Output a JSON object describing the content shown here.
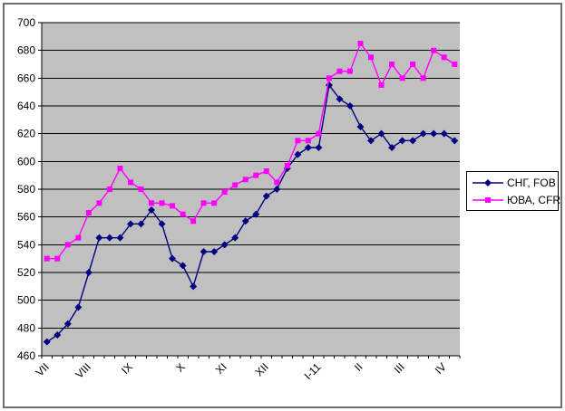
{
  "chart_data": {
    "type": "line",
    "title": "",
    "plot_bg": "#C0C0C0",
    "grid": true,
    "grid_color": "#000000",
    "axis_color": "#000000",
    "ylim": [
      460,
      700
    ],
    "ytick_step": 20,
    "yticks": [
      460,
      480,
      500,
      520,
      540,
      560,
      580,
      600,
      620,
      640,
      660,
      680,
      700
    ],
    "x_tick_count": 41,
    "x_labels": [
      {
        "text": "VII",
        "i": 0
      },
      {
        "text": "VIII",
        "i": 4
      },
      {
        "text": "IX",
        "i": 8
      },
      {
        "text": "X",
        "i": 13
      },
      {
        "text": "XI",
        "i": 17
      },
      {
        "text": "XII",
        "i": 21
      },
      {
        "text": "I-11",
        "i": 26
      },
      {
        "text": "II",
        "i": 30
      },
      {
        "text": "III",
        "i": 34
      },
      {
        "text": "IV",
        "i": 38
      }
    ],
    "legend_position": "right",
    "series": [
      {
        "name": "СНГ, FOB",
        "color": "#000080",
        "marker": "diamond",
        "values": [
          470,
          475,
          483,
          495,
          520,
          545,
          545,
          545,
          555,
          555,
          565,
          555,
          530,
          525,
          510,
          535,
          535,
          540,
          545,
          557,
          562,
          575,
          580,
          595,
          605,
          610,
          610,
          655,
          645,
          640,
          625,
          615,
          620,
          610,
          615,
          615,
          620,
          620,
          620,
          615
        ]
      },
      {
        "name": "ЮВА, CFR",
        "color": "#FF00FF",
        "marker": "square",
        "values": [
          530,
          530,
          540,
          545,
          563,
          570,
          580,
          595,
          585,
          580,
          570,
          570,
          568,
          562,
          557,
          570,
          570,
          578,
          583,
          587,
          590,
          593,
          585,
          597,
          615,
          615,
          620,
          660,
          665,
          665,
          685,
          675,
          655,
          670,
          660,
          670,
          660,
          680,
          675,
          670
        ]
      }
    ]
  }
}
